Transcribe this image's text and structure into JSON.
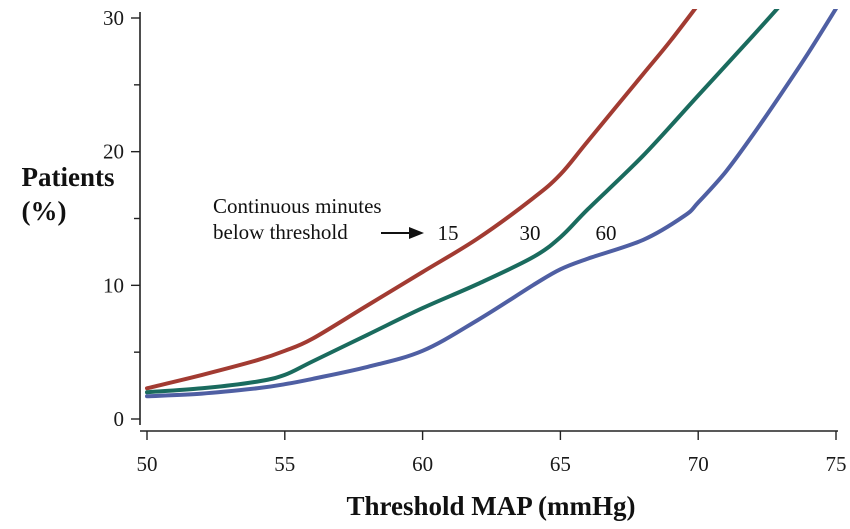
{
  "chart_data": {
    "type": "line",
    "xlabel": "Threshold MAP (mmHg)",
    "ylabel_line1": "Patients",
    "ylabel_line2": "(%)",
    "xlim": [
      50,
      75
    ],
    "ylim": [
      0,
      30
    ],
    "xticks": [
      50,
      55,
      60,
      65,
      70,
      75
    ],
    "yticks": [
      0,
      10,
      20,
      30
    ],
    "xtick_labels": [
      "50",
      "55",
      "60",
      "65",
      "70",
      "75"
    ],
    "ytick_labels": [
      "0",
      "10",
      "20",
      "30"
    ],
    "grid": false,
    "annotation": {
      "line1": "Continuous minutes",
      "line2": "below threshold"
    },
    "series": [
      {
        "name": "15",
        "color": "#a23b32",
        "x": [
          50,
          52,
          54,
          55,
          56,
          58,
          60,
          62,
          64,
          65,
          66,
          68,
          69,
          70
        ],
        "y": [
          2.3,
          3.3,
          4.4,
          5.1,
          6.0,
          8.5,
          11.0,
          13.5,
          16.5,
          18.3,
          20.8,
          25.8,
          28.3,
          31.0
        ]
      },
      {
        "name": "30",
        "color": "#1a6b5e",
        "x": [
          50,
          52,
          54,
          55,
          56,
          58,
          60,
          62,
          64,
          65,
          66,
          68,
          70,
          72,
          73
        ],
        "y": [
          2.0,
          2.3,
          2.8,
          3.3,
          4.3,
          6.3,
          8.3,
          10.1,
          12.1,
          13.6,
          15.7,
          19.7,
          24.2,
          28.7,
          31.0
        ]
      },
      {
        "name": "60",
        "color": "#4f5fa3",
        "x": [
          50,
          52,
          54,
          55,
          56,
          58,
          60,
          62,
          64,
          65,
          66,
          68,
          69.5,
          70,
          71,
          72,
          73,
          74,
          75
        ],
        "y": [
          1.7,
          1.9,
          2.3,
          2.6,
          3.0,
          3.9,
          5.1,
          7.4,
          10.0,
          11.2,
          12.0,
          13.4,
          15.2,
          16.2,
          18.5,
          21.3,
          24.3,
          27.4,
          30.7
        ]
      }
    ]
  }
}
